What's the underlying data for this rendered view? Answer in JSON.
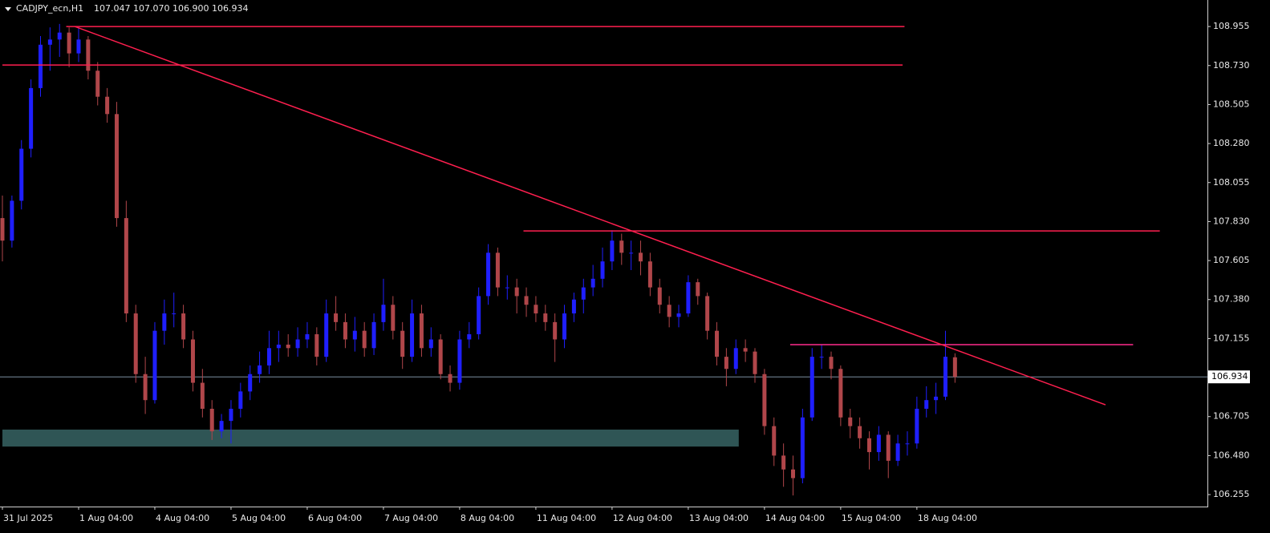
{
  "chart_data": {
    "type": "candlestick",
    "symbol": "CADJPY_ecn,H1",
    "ohlc_text": "107.047 107.070 106.900 106.934",
    "categories": [
      "31 Jul 2025",
      null,
      null,
      null,
      null,
      null,
      null,
      null,
      "1 Aug 04:00",
      null,
      null,
      null,
      null,
      null,
      null,
      null,
      "4 Aug 04:00",
      null,
      null,
      null,
      null,
      null,
      null,
      null,
      "5 Aug 04:00",
      null,
      null,
      null,
      null,
      null,
      null,
      null,
      "6 Aug 04:00",
      null,
      null,
      null,
      null,
      null,
      null,
      null,
      "7 Aug 04:00",
      null,
      null,
      null,
      null,
      null,
      null,
      null,
      "8 Aug 04:00",
      null,
      null,
      null,
      null,
      null,
      null,
      null,
      "11 Aug 04:00",
      null,
      null,
      null,
      null,
      null,
      null,
      null,
      "12 Aug 04:00",
      null,
      null,
      null,
      null,
      null,
      null,
      null,
      "13 Aug 04:00",
      null,
      null,
      null,
      null,
      null,
      null,
      null,
      "14 Aug 04:00",
      null,
      null,
      null,
      null,
      null,
      null,
      null,
      "15 Aug 04:00",
      null,
      null,
      null,
      null,
      null,
      null,
      null,
      "18 Aug 04:00",
      null,
      null,
      null,
      null
    ],
    "open": [
      107.85,
      107.72,
      107.95,
      108.25,
      108.6,
      108.85,
      108.88,
      108.92,
      108.8,
      108.88,
      108.7,
      108.55,
      108.45,
      107.85,
      107.3,
      106.95,
      106.8,
      107.2,
      107.3,
      107.3,
      107.15,
      106.9,
      106.75,
      106.62,
      106.68,
      106.75,
      106.85,
      106.95,
      107.0,
      107.1,
      107.12,
      107.1,
      107.15,
      107.18,
      107.05,
      107.3,
      107.25,
      107.15,
      107.2,
      107.1,
      107.25,
      107.35,
      107.2,
      107.05,
      107.3,
      107.1,
      107.15,
      106.95,
      106.9,
      107.15,
      107.18,
      107.4,
      107.65,
      107.45,
      107.45,
      107.4,
      107.35,
      107.3,
      107.25,
      107.15,
      107.3,
      107.38,
      107.45,
      107.5,
      107.6,
      107.72,
      107.65,
      107.65,
      107.6,
      107.45,
      107.35,
      107.28,
      107.3,
      107.48,
      107.4,
      107.2,
      107.05,
      106.98,
      107.1,
      107.08,
      106.95,
      106.65,
      106.48,
      106.4,
      106.35,
      106.7,
      107.05,
      107.05,
      106.98,
      106.7,
      106.65,
      106.58,
      106.5,
      106.6,
      106.45,
      106.55,
      106.55,
      106.75,
      106.8,
      106.82,
      107.047
    ],
    "high": [
      107.98,
      107.98,
      108.3,
      108.65,
      108.9,
      108.95,
      108.97,
      108.95,
      108.95,
      108.9,
      108.75,
      108.6,
      108.52,
      107.95,
      107.35,
      107.05,
      107.25,
      107.38,
      107.42,
      107.35,
      107.2,
      106.98,
      106.8,
      106.72,
      106.8,
      106.9,
      107.0,
      107.08,
      107.2,
      107.2,
      107.18,
      107.22,
      107.25,
      107.22,
      107.38,
      107.4,
      107.3,
      107.28,
      107.25,
      107.3,
      107.5,
      107.4,
      107.25,
      107.38,
      107.35,
      107.22,
      107.18,
      107.0,
      107.2,
      107.25,
      107.45,
      107.7,
      107.68,
      107.52,
      107.5,
      107.45,
      107.4,
      107.35,
      107.3,
      107.35,
      107.42,
      107.5,
      107.58,
      107.68,
      107.78,
      107.76,
      107.72,
      107.72,
      107.65,
      107.5,
      107.4,
      107.35,
      107.52,
      107.5,
      107.42,
      107.25,
      107.1,
      107.15,
      107.15,
      107.1,
      106.98,
      106.7,
      106.55,
      106.48,
      106.75,
      107.1,
      107.12,
      107.08,
      107.0,
      106.75,
      106.7,
      106.62,
      106.65,
      106.62,
      106.6,
      106.62,
      106.82,
      106.88,
      106.9,
      107.2,
      107.07
    ],
    "low": [
      107.6,
      107.68,
      107.9,
      108.2,
      108.55,
      108.7,
      108.78,
      108.72,
      108.75,
      108.65,
      108.5,
      108.4,
      107.8,
      107.25,
      106.9,
      106.72,
      106.78,
      107.12,
      107.22,
      107.1,
      106.85,
      106.7,
      106.57,
      106.58,
      106.55,
      106.7,
      106.8,
      106.9,
      106.95,
      107.02,
      107.05,
      107.05,
      107.1,
      107.0,
      107.02,
      107.2,
      107.1,
      107.08,
      107.05,
      107.06,
      107.2,
      107.15,
      106.98,
      107.02,
      107.05,
      107.05,
      106.92,
      106.85,
      106.86,
      107.1,
      107.15,
      107.35,
      107.4,
      107.38,
      107.3,
      107.28,
      107.25,
      107.2,
      107.02,
      107.1,
      107.25,
      107.3,
      107.4,
      107.45,
      107.55,
      107.58,
      107.55,
      107.52,
      107.4,
      107.3,
      107.22,
      107.22,
      107.28,
      107.35,
      107.15,
      107.0,
      106.88,
      106.95,
      107.02,
      106.9,
      106.6,
      106.42,
      106.3,
      106.25,
      106.32,
      106.68,
      106.98,
      106.92,
      106.65,
      106.58,
      106.52,
      106.4,
      106.45,
      106.35,
      106.42,
      106.48,
      106.52,
      106.7,
      106.72,
      106.8,
      106.9
    ],
    "close": [
      107.72,
      107.95,
      108.25,
      108.6,
      108.85,
      108.88,
      108.92,
      108.8,
      108.88,
      108.7,
      108.55,
      108.45,
      107.85,
      107.3,
      106.95,
      106.8,
      107.2,
      107.3,
      107.3,
      107.15,
      106.9,
      106.75,
      106.62,
      106.68,
      106.75,
      106.85,
      106.95,
      107.0,
      107.1,
      107.12,
      107.1,
      107.15,
      107.18,
      107.05,
      107.3,
      107.25,
      107.15,
      107.2,
      107.1,
      107.25,
      107.35,
      107.2,
      107.05,
      107.3,
      107.1,
      107.15,
      106.95,
      106.9,
      107.15,
      107.18,
      107.4,
      107.65,
      107.45,
      107.45,
      107.4,
      107.35,
      107.3,
      107.25,
      107.15,
      107.3,
      107.38,
      107.45,
      107.5,
      107.6,
      107.72,
      107.65,
      107.65,
      107.6,
      107.45,
      107.35,
      107.28,
      107.3,
      107.48,
      107.4,
      107.2,
      107.05,
      106.98,
      107.1,
      107.08,
      106.95,
      106.65,
      106.48,
      106.4,
      106.35,
      106.7,
      107.05,
      107.05,
      106.98,
      106.7,
      106.65,
      106.58,
      106.5,
      106.6,
      106.45,
      106.55,
      106.55,
      106.75,
      106.8,
      106.82,
      107.05,
      106.934
    ],
    "up_color": "#1f1fff",
    "down_color": "#b0464a",
    "xlim": [
      0,
      126.5
    ],
    "ylim": [
      106.186,
      109.108
    ],
    "yticks": [
      {
        "value": 108.955,
        "label": "108.955"
      },
      {
        "value": 108.73,
        "label": "108.730"
      },
      {
        "value": 108.505,
        "label": "108.505"
      },
      {
        "value": 108.28,
        "label": "108.280"
      },
      {
        "value": 108.055,
        "label": "108.055"
      },
      {
        "value": 107.83,
        "label": "107.830"
      },
      {
        "value": 107.605,
        "label": "107.605"
      },
      {
        "value": 107.38,
        "label": "107.380"
      },
      {
        "value": 107.155,
        "label": "107.155"
      },
      {
        "value": 106.705,
        "label": "106.705"
      },
      {
        "value": 106.48,
        "label": "106.480"
      },
      {
        "value": 106.255,
        "label": "106.255"
      }
    ],
    "last_price": 106.934,
    "last_price_color": "#7a8ea0",
    "hlines": [
      {
        "price": 108.955,
        "x": [
          6.7,
          94.7
        ],
        "color": "#ff1f4f"
      },
      {
        "price": 108.733,
        "x": [
          0,
          94.5
        ],
        "color": "#ff1f4f"
      },
      {
        "price": 107.776,
        "x": [
          54.7,
          121.5
        ],
        "color": "#ff1f4f"
      },
      {
        "price": 107.12,
        "x": [
          82.7,
          118.7
        ],
        "color": "#ff2a8c"
      }
    ],
    "trendline": {
      "x": [
        7.6,
        115.8
      ],
      "price": [
        108.955,
        106.773
      ],
      "color": "#ff1f4f"
    },
    "zone": {
      "x": [
        0,
        77.3
      ],
      "price": [
        106.63,
        106.532
      ],
      "color": "#2f5555"
    }
  }
}
